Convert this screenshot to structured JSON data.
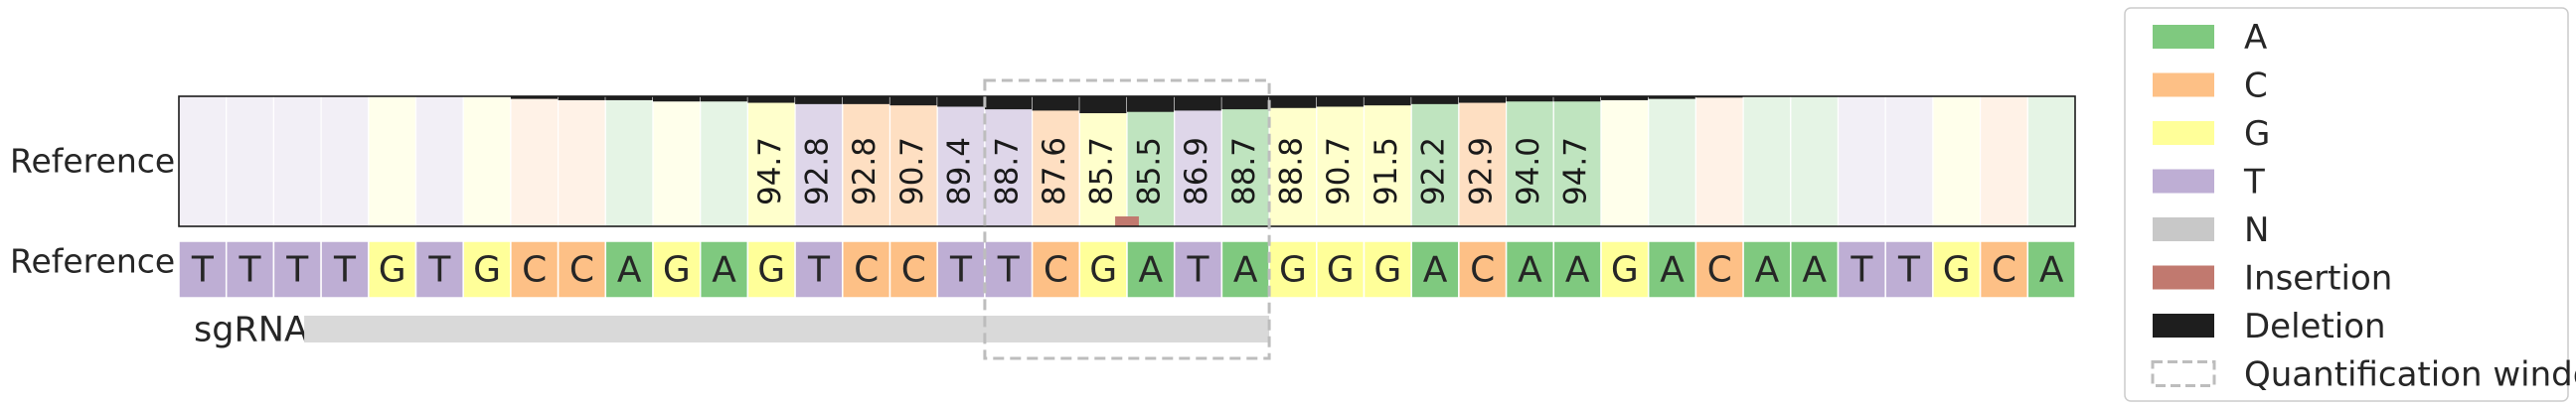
{
  "chart_data": {
    "type": "heatmap",
    "title": "",
    "row_labels": [
      "Reference",
      "Reference",
      "sgRNA"
    ],
    "reference_sequence": [
      "T",
      "T",
      "T",
      "T",
      "G",
      "T",
      "G",
      "C",
      "C",
      "A",
      "G",
      "A",
      "G",
      "T",
      "C",
      "C",
      "T",
      "T",
      "C",
      "G",
      "A",
      "T",
      "A",
      "G",
      "G",
      "G",
      "A",
      "C",
      "A",
      "A",
      "G",
      "A",
      "C",
      "A",
      "A",
      "T",
      "T",
      "G",
      "C",
      "A"
    ],
    "percent_reference": [
      null,
      null,
      null,
      null,
      null,
      null,
      null,
      null,
      null,
      null,
      null,
      null,
      94.7,
      92.8,
      92.8,
      90.7,
      89.4,
      88.7,
      87.6,
      85.7,
      85.5,
      86.9,
      88.7,
      88.8,
      90.7,
      91.5,
      92.2,
      92.9,
      94.0,
      94.7,
      null,
      null,
      null,
      null,
      null,
      null,
      null,
      null,
      null,
      null
    ],
    "shading_alpha": [
      0.2,
      0.2,
      0.2,
      0.2,
      0.2,
      0.2,
      0.2,
      0.2,
      0.2,
      0.2,
      0.2,
      0.2,
      0.5,
      0.5,
      0.5,
      0.5,
      0.5,
      0.5,
      0.5,
      0.5,
      0.5,
      0.5,
      0.5,
      0.5,
      0.5,
      0.5,
      0.5,
      0.5,
      0.5,
      0.5,
      0.2,
      0.2,
      0.2,
      0.2,
      0.2,
      0.2,
      0.2,
      0.2,
      0.2,
      0.2
    ],
    "deletion_fraction": [
      0.0,
      0.0,
      0.0,
      0.0,
      0.0,
      0.0,
      0.0,
      0.02,
      0.03,
      0.03,
      0.04,
      0.04,
      0.05,
      0.06,
      0.06,
      0.07,
      0.08,
      0.1,
      0.11,
      0.13,
      0.12,
      0.11,
      0.1,
      0.09,
      0.08,
      0.07,
      0.06,
      0.05,
      0.04,
      0.04,
      0.03,
      0.02,
      0.01,
      0.0,
      0.0,
      0.0,
      0.0,
      0.0,
      0.0,
      0.0
    ],
    "insertion_fraction": [
      0,
      0,
      0,
      0,
      0,
      0,
      0,
      0,
      0,
      0,
      0,
      0,
      0,
      0,
      0,
      0,
      0,
      0,
      0,
      0,
      0.5,
      0,
      0,
      0,
      0,
      0,
      0,
      0,
      0,
      0,
      0,
      0,
      0,
      0,
      0,
      0,
      0,
      0,
      0,
      0
    ],
    "sgRNA_start_index": 3,
    "sgRNA_end_index": 22,
    "quantification_window": [
      17,
      22
    ],
    "legend_position": "right",
    "legend": [
      {
        "label": "A",
        "color": "#7fc97f",
        "kind": "fill"
      },
      {
        "label": "C",
        "color": "#fdc086",
        "kind": "fill"
      },
      {
        "label": "G",
        "color": "#ffff99",
        "kind": "fill"
      },
      {
        "label": "T",
        "color": "#beaed4",
        "kind": "fill"
      },
      {
        "label": "N",
        "color": "#c8c8c8",
        "kind": "fill"
      },
      {
        "label": "Insertion",
        "color": "#c1796f",
        "kind": "fill"
      },
      {
        "label": "Deletion",
        "color": "#1e1e1e",
        "kind": "fill"
      },
      {
        "label": "Quantification window",
        "color": "#bdbdbd",
        "kind": "dashed"
      }
    ],
    "colors": {
      "A": "#7fc97f",
      "C": "#fdc086",
      "G": "#ffff99",
      "T": "#beaed4",
      "N": "#c8c8c8",
      "insertion": "#c1796f",
      "deletion": "#1e1e1e",
      "sgRNA": "#d9d9d9",
      "window": "#bdbdbd"
    }
  }
}
